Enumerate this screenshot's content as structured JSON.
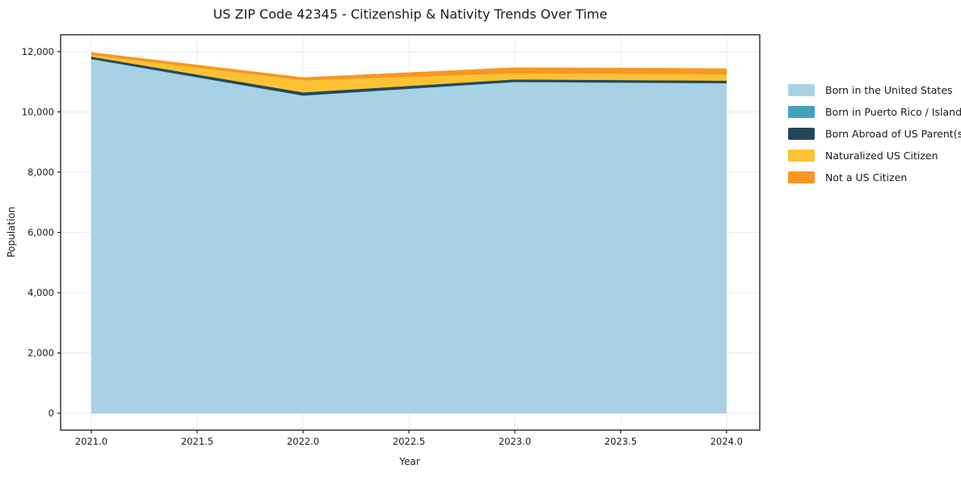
{
  "chart": {
    "title": "US ZIP Code 42345 - Citizenship & Nativity Trends Over Time",
    "xlabel": "Year",
    "ylabel": "Population"
  },
  "chart_data": {
    "type": "area",
    "stacked": true,
    "title": "US ZIP Code 42345 - Citizenship & Nativity Trends Over Time",
    "xlabel": "Year",
    "ylabel": "Population",
    "x": [
      2021,
      2022,
      2023,
      2024
    ],
    "series": [
      {
        "name": "Born in the United States",
        "color": "#a9d1e5",
        "values": [
          11750,
          10540,
          10990,
          10950
        ]
      },
      {
        "name": "Born in Puerto Rico / Islands",
        "color": "#41a1c0",
        "values": [
          15,
          10,
          10,
          10
        ]
      },
      {
        "name": "Born Abroad of US Parent(s)",
        "color": "#24485a",
        "values": [
          70,
          100,
          80,
          80
        ]
      },
      {
        "name": "Naturalized US Citizen",
        "color": "#fcc233",
        "values": [
          60,
          400,
          205,
          215
        ]
      },
      {
        "name": "Not a US Citizen",
        "color": "#f79722",
        "values": [
          80,
          90,
          185,
          185
        ]
      }
    ],
    "xlim": [
      2020.855,
      2024.157
    ],
    "ylim": [
      -560,
      12560
    ],
    "xticks": [
      2021.0,
      2021.5,
      2022.0,
      2022.5,
      2023.0,
      2023.5,
      2024.0
    ],
    "xtick_labels": [
      "2021.0",
      "2021.5",
      "2022.0",
      "2022.5",
      "2023.0",
      "2023.5",
      "2024.0"
    ],
    "yticks": [
      0,
      2000,
      4000,
      6000,
      8000,
      10000,
      12000
    ],
    "ytick_labels": [
      "0",
      "2,000",
      "4,000",
      "6,000",
      "8,000",
      "10,000",
      "12,000"
    ],
    "grid": true,
    "legend_position": "right-outside",
    "colors": {
      "grid": "#ececec",
      "spine": "#1a1a1a",
      "background": "#ffffff"
    }
  },
  "legend": {
    "items": [
      {
        "label": "Born in the United States"
      },
      {
        "label": "Born in Puerto Rico / Islands"
      },
      {
        "label": "Born Abroad of US Parent(s)"
      },
      {
        "label": "Naturalized US Citizen"
      },
      {
        "label": "Not a US Citizen"
      }
    ]
  }
}
